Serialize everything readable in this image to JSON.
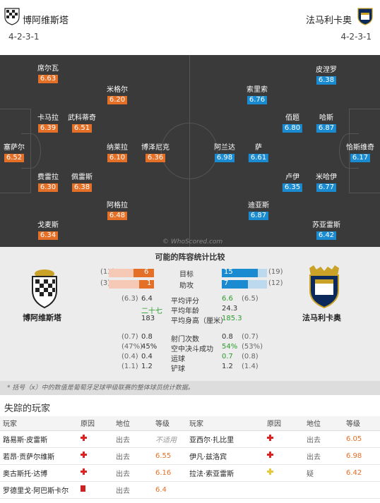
{
  "header": {
    "home_team": "博阿维斯塔",
    "home_formation": "4-2-3-1",
    "away_team": "法马利卡奥",
    "away_formation": "4-2-3-1"
  },
  "pitch": {
    "watermark": "© WhoScored.com",
    "home_players": [
      {
        "name": "席尔瓦",
        "rating": "6.63"
      },
      {
        "name": "米格尔",
        "rating": "6.20"
      },
      {
        "name": "卡马拉",
        "rating": "6.39"
      },
      {
        "name": "武科蒂奇",
        "rating": "6.51"
      },
      {
        "name": "塞萨尔",
        "rating": "6.52"
      },
      {
        "name": "纳莱拉",
        "rating": "6.10"
      },
      {
        "name": "博泽尼克",
        "rating": "6.36"
      },
      {
        "name": "费雷拉",
        "rating": "6.30"
      },
      {
        "name": "佩雷斯",
        "rating": "6.38"
      },
      {
        "name": "阿格拉",
        "rating": "6.48"
      },
      {
        "name": "戈麦斯",
        "rating": "6.34"
      }
    ],
    "away_players": [
      {
        "name": "皮涅罗",
        "rating": "6.38"
      },
      {
        "name": "索里索",
        "rating": "6.76"
      },
      {
        "name": "佰题",
        "rating": "6.80"
      },
      {
        "name": "哈斯",
        "rating": "6.87"
      },
      {
        "name": "阿兰达",
        "rating": "6.98"
      },
      {
        "name": "萨",
        "rating": "6.61"
      },
      {
        "name": "恰斯维奇",
        "rating": "6.17"
      },
      {
        "name": "卢伊",
        "rating": "6.35"
      },
      {
        "name": "米哈伊",
        "rating": "6.77"
      },
      {
        "name": "迪亚斯",
        "rating": "6.87"
      },
      {
        "name": "苏亚雷斯",
        "rating": "6.42"
      }
    ]
  },
  "stats": {
    "title": "可能的阵容统计比较",
    "home_team": "博阿维斯塔",
    "away_team": "法马利卡奥",
    "goals": {
      "label": "目标",
      "home_prev": "(13)",
      "home": "6",
      "away": "15",
      "away_prev": "(19)",
      "home_frac": 0.46,
      "away_frac": 0.79
    },
    "assists": {
      "label": "助攻",
      "home_prev": "(3)",
      "home": "1",
      "away": "7",
      "away_prev": "(12)",
      "home_frac": 0.33,
      "away_frac": 0.58
    },
    "rows": [
      {
        "label": "平均评分",
        "home_prev": "(6.3)",
        "home": "6.4",
        "away": "6.6",
        "away_prev": "(6.5)",
        "home_color": "#333",
        "away_color": "#2a9d2a"
      },
      {
        "label": "平均年龄",
        "home_prev": "",
        "home": "二十七",
        "away": "24.3",
        "away_prev": "",
        "home_color": "#2a9d2a",
        "away_color": "#333"
      },
      {
        "label": "平均身高（厘米）",
        "home_prev": "",
        "home": "183",
        "away": "185.3",
        "away_prev": "",
        "home_color": "#333",
        "away_color": "#2a9d2a"
      },
      {
        "label": "射门次数",
        "home_prev": "(0.7)",
        "home": "0.8",
        "away": "0.8",
        "away_prev": "(0.7)",
        "home_color": "#333",
        "away_color": "#333"
      },
      {
        "label": "空中决斗成功",
        "home_prev": "(47%)",
        "home": "45%",
        "away": "54%",
        "away_prev": "(53%)",
        "home_color": "#333",
        "away_color": "#2a9d2a"
      },
      {
        "label": "运球",
        "home_prev": "(0.4)",
        "home": "0.4",
        "away": "0.7",
        "away_prev": "(0.8)",
        "home_color": "#333",
        "away_color": "#2a9d2a"
      },
      {
        "label": "铲球",
        "home_prev": "(1.1)",
        "home": "1.2",
        "away": "1.2",
        "away_prev": "(1.4)",
        "home_color": "#333",
        "away_color": "#333"
      }
    ],
    "note": "* 括号（x）中的数值是葡萄牙足球甲级联赛的整体球员统计数据。"
  },
  "missing": {
    "title": "失踪的玩家",
    "headers": [
      "玩家",
      "原因",
      "地位",
      "等级",
      "玩家",
      "原因",
      "地位",
      "等级"
    ],
    "rows": [
      {
        "h_name": "路易斯·皮雷斯",
        "h_reason": "cross",
        "h_status": "出去",
        "h_rating": "不适用",
        "a_name": "亚西尔·扎比里",
        "a_reason": "cross",
        "a_status": "出去",
        "a_rating": "6.05"
      },
      {
        "h_name": "若昂·贡萨尔维斯",
        "h_reason": "cross",
        "h_status": "出去",
        "h_rating": "6.55",
        "a_name": "伊凡·兹洛宾",
        "a_reason": "cross",
        "a_status": "出去",
        "a_rating": "6.98"
      },
      {
        "h_name": "奥古斯托·达博",
        "h_reason": "cross",
        "h_status": "出去",
        "h_rating": "6.16",
        "a_name": "拉法·索亚雷斯",
        "a_reason": "doubt",
        "a_status": "疑",
        "a_rating": "6.42"
      },
      {
        "h_name": "罗德里戈·阿巴斯卡尔",
        "h_reason": "redcard",
        "h_status": "出去",
        "h_rating": "6.4",
        "a_name": "",
        "a_reason": "",
        "a_status": "",
        "a_rating": ""
      }
    ]
  },
  "colors": {
    "home_rating": "#e46f26",
    "away_rating": "#1a8bd1",
    "pitch": "#3a3a3a",
    "green": "#2a9d2a"
  }
}
